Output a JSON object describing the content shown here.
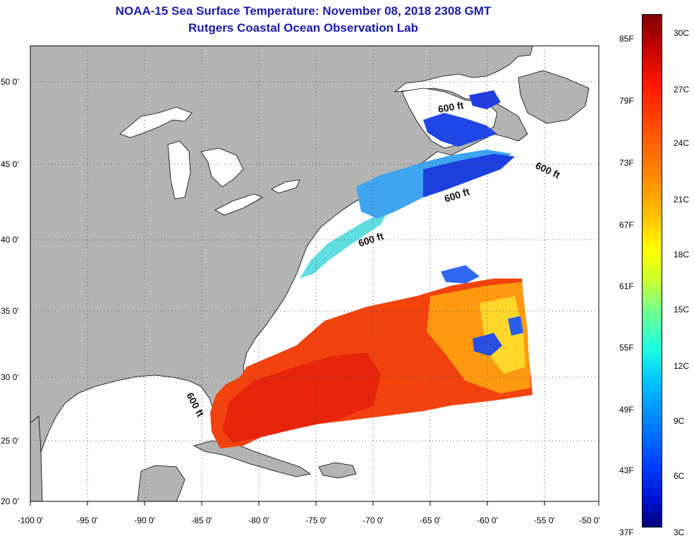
{
  "title": {
    "line1": "NOAA-15 Sea Surface Temperature:  November 08, 2018 2308 GMT",
    "line2": "Rutgers Coastal Ocean Observation Lab"
  },
  "axes": {
    "x_ticks": [
      "-100 0'",
      "-95 0'",
      "-90 0'",
      "-85 0'",
      "-80 0'",
      "-75 0'",
      "-70 0'",
      "-65 0'",
      "-60 0'",
      "-55 0'",
      "-50 0'"
    ],
    "y_ticks": [
      "50 0'",
      "45 0'",
      "40 0'",
      "35 0'",
      "30 0'",
      "25 0'",
      "20 0'"
    ],
    "lon_range": [
      -100,
      -50
    ],
    "lat_range": [
      20,
      52.5
    ]
  },
  "contours": {
    "label": "600 ft"
  },
  "colorbar": {
    "fahrenheit": [
      "85F",
      "79F",
      "73F",
      "67F",
      "61F",
      "55F",
      "49F",
      "43F",
      "37F"
    ],
    "celsius": [
      "30C",
      "27C",
      "24C",
      "21C",
      "18C",
      "15C",
      "12C",
      "9C",
      "6C",
      "3C"
    ],
    "colors": {
      "top": "#800000",
      "bottom": "#00007a"
    }
  },
  "colors": {
    "land": "#b3b3b3",
    "ocean": "#ffffff",
    "title": "#1a1aa8",
    "gridline": "#555555"
  }
}
